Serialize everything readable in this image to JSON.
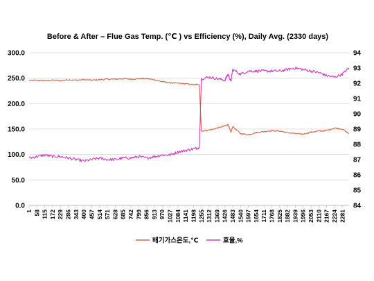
{
  "chart_data": {
    "type": "line",
    "title": "Before & After – Flue Gas Temp. (℃ ) vs Efficiency (%), Daily Avg. (2330 days)",
    "x_ticks": [
      "1",
      "58",
      "115",
      "172",
      "229",
      "286",
      "343",
      "400",
      "457",
      "514",
      "571",
      "628",
      "685",
      "742",
      "799",
      "856",
      "913",
      "970",
      "1027",
      "1084",
      "1141",
      "1198",
      "1255",
      "1312",
      "1369",
      "1426",
      "1483",
      "1540",
      "1597",
      "1654",
      "1711",
      "1768",
      "1825",
      "1882",
      "1939",
      "1996",
      "2053",
      "2110",
      "2167",
      "2224",
      "2281"
    ],
    "x_range": [
      1,
      2330
    ],
    "y_left": {
      "ticks": [
        "0.0",
        "50.0",
        "100.0",
        "150.0",
        "200.0",
        "250.0",
        "300.0"
      ],
      "range": [
        0,
        300
      ]
    },
    "y_right": {
      "ticks": [
        "84",
        "85",
        "86",
        "87",
        "88",
        "89",
        "90",
        "91",
        "92",
        "93",
        "94"
      ],
      "range": [
        84,
        94
      ]
    },
    "grid": "horizontal",
    "legend_position": "bottom",
    "series": [
      {
        "name": "배기가스온도,℃",
        "axis": "left",
        "color": "#d0664a",
        "x": [
          1,
          58,
          115,
          172,
          229,
          286,
          343,
          400,
          457,
          514,
          571,
          628,
          685,
          742,
          799,
          856,
          913,
          970,
          1027,
          1084,
          1141,
          1198,
          1240,
          1255,
          1312,
          1369,
          1426,
          1450,
          1470,
          1483,
          1540,
          1597,
          1654,
          1711,
          1768,
          1825,
          1882,
          1939,
          1996,
          2053,
          2110,
          2167,
          2224,
          2281,
          2330
        ],
        "y": [
          245,
          246,
          245,
          246,
          245,
          247,
          246,
          247,
          246,
          247,
          248,
          248,
          249,
          248,
          249,
          249,
          247,
          243,
          241,
          240,
          239,
          237,
          238,
          146,
          148,
          152,
          156,
          159,
          143,
          155,
          141,
          139,
          143,
          145,
          147,
          146,
          143,
          141,
          140,
          144,
          146,
          147,
          152,
          150,
          141
        ]
      },
      {
        "name": "효율,%",
        "axis": "right",
        "color": "#cc3fbf",
        "x": [
          1,
          58,
          115,
          172,
          229,
          286,
          343,
          400,
          457,
          514,
          571,
          628,
          685,
          742,
          799,
          856,
          913,
          970,
          1027,
          1084,
          1141,
          1198,
          1240,
          1255,
          1312,
          1369,
          1426,
          1450,
          1470,
          1483,
          1540,
          1597,
          1654,
          1711,
          1768,
          1825,
          1882,
          1939,
          1996,
          2053,
          2110,
          2167,
          2224,
          2281,
          2330
        ],
        "y": [
          87.1,
          87.2,
          87.3,
          87.2,
          87.2,
          87.1,
          87.0,
          86.9,
          87.0,
          87.1,
          87.0,
          87.0,
          87.1,
          87.1,
          87.2,
          87.1,
          87.2,
          87.3,
          87.3,
          87.5,
          87.6,
          87.7,
          87.8,
          92.3,
          92.4,
          92.3,
          92.2,
          92.6,
          92.1,
          92.9,
          92.6,
          92.8,
          92.8,
          92.8,
          92.8,
          92.8,
          92.9,
          93.0,
          92.9,
          92.8,
          92.7,
          92.5,
          92.4,
          92.6,
          93.0
        ]
      }
    ]
  }
}
